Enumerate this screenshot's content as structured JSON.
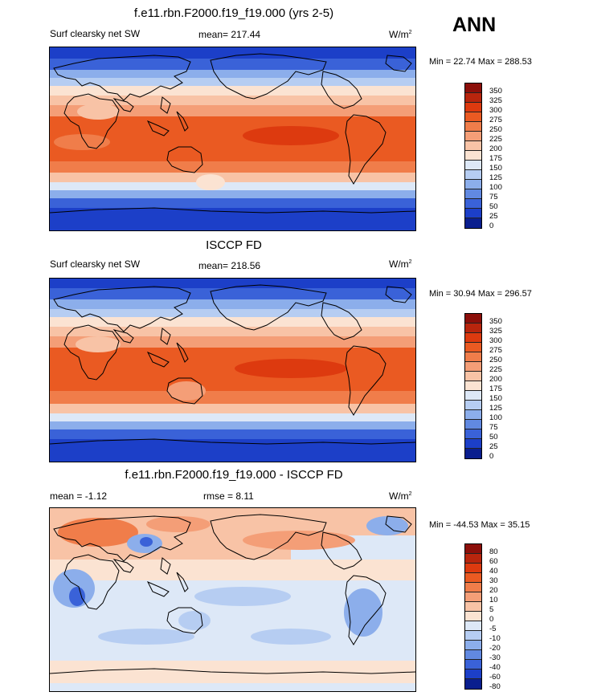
{
  "header": {
    "season": "ANN"
  },
  "panels": [
    {
      "title": "f.e11.rbn.F2000.f19_f19.000 (yrs 2-5)",
      "left_label": "Surf clearsky net SW",
      "stat": "mean= 217.44",
      "units": "W/m",
      "units_sup": "2",
      "minmax": "Min =  22.74 Max = 288.53",
      "levels": [
        "350",
        "325",
        "300",
        "275",
        "250",
        "225",
        "200",
        "175",
        "150",
        "125",
        "100",
        "75",
        "50",
        "25",
        "0"
      ],
      "colors": [
        "#8c0f0a",
        "#b8250d",
        "#dd3a0f",
        "#ea5a22",
        "#f07d4a",
        "#f49e77",
        "#f8c3a6",
        "#fbe3d2",
        "#dde8f7",
        "#b6cdf2",
        "#8caeeb",
        "#6189e1",
        "#3a62d8",
        "#1c3fc8",
        "#0a1e8e"
      ]
    },
    {
      "title": "ISCCP FD",
      "left_label": "Surf clearsky net SW",
      "stat": "mean= 218.56",
      "units": "W/m",
      "units_sup": "2",
      "minmax": "Min =  30.94 Max = 296.57",
      "levels": [
        "350",
        "325",
        "300",
        "275",
        "250",
        "225",
        "200",
        "175",
        "150",
        "125",
        "100",
        "75",
        "50",
        "25",
        "0"
      ],
      "colors": [
        "#8c0f0a",
        "#b8250d",
        "#dd3a0f",
        "#ea5a22",
        "#f07d4a",
        "#f49e77",
        "#f8c3a6",
        "#fbe3d2",
        "#dde8f7",
        "#b6cdf2",
        "#8caeeb",
        "#6189e1",
        "#3a62d8",
        "#1c3fc8",
        "#0a1e8e"
      ]
    },
    {
      "title": "f.e11.rbn.F2000.f19_f19.000 - ISCCP FD",
      "left_label": "mean =  -1.12",
      "stat": "rmse =   8.11",
      "units": "W/m",
      "units_sup": "2",
      "minmax": "Min = -44.53 Max =  35.15",
      "levels": [
        "80",
        "60",
        "40",
        "30",
        "20",
        "10",
        "5",
        "0",
        "-5",
        "-10",
        "-20",
        "-30",
        "-40",
        "-60",
        "-80"
      ],
      "colors": [
        "#8c0f0a",
        "#b8250d",
        "#dd3a0f",
        "#ea5a22",
        "#f07d4a",
        "#f49e77",
        "#f8c3a6",
        "#fbe3d2",
        "#dde8f7",
        "#b6cdf2",
        "#8caeeb",
        "#6189e1",
        "#3a62d8",
        "#1c3fc8",
        "#0a1e8e"
      ]
    }
  ]
}
